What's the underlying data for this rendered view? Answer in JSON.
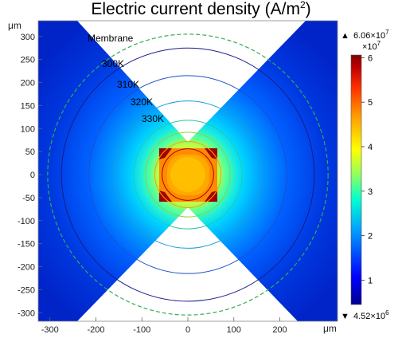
{
  "chart_data": {
    "type": "heatmap",
    "title_main": "Electric current density (A/m",
    "title_sup": "2",
    "title_end": ")",
    "xunit": "μm",
    "yunit": "μm",
    "xlim": [
      -320,
      320
    ],
    "ylim": [
      -310,
      310
    ],
    "xticks": [
      -300,
      -200,
      -100,
      0,
      100,
      200
    ],
    "yticks": [
      300,
      250,
      200,
      150,
      100,
      50,
      0,
      -50,
      -100,
      -150,
      -200,
      -250,
      -300
    ],
    "colorbar": {
      "min": 4520000,
      "max": 60600000,
      "max_label_base": "6.06×10",
      "max_label_exp": "7",
      "min_label_base": "4.52×10",
      "min_label_exp": "6",
      "scale_base": "×10",
      "scale_exp": "7",
      "ticks": [
        1,
        2,
        3,
        4,
        5,
        6
      ],
      "colors": [
        "#00008f",
        "#0000ff",
        "#00a0ff",
        "#00ffd0",
        "#90ff60",
        "#ffff00",
        "#ffa000",
        "#ff3000",
        "#b00000",
        "#800000"
      ]
    },
    "membrane_label": "Membrane",
    "membrane_radius": 305,
    "isotherms": [
      {
        "label": "300K",
        "radius": 275,
        "color": "#1a1a8c"
      },
      {
        "label": "310K",
        "radius": 215,
        "color": "#1c50c8"
      },
      {
        "label": "320K",
        "radius": 160,
        "color": "#1aa0d8"
      },
      {
        "label": "330K",
        "radius": 118,
        "color": "#2ac8a0"
      },
      {
        "label": "",
        "radius": 92,
        "color": "#9acd32"
      },
      {
        "label": "",
        "radius": 72,
        "color": "#ffa000"
      },
      {
        "label": "",
        "radius": 56,
        "color": "#b00000"
      }
    ]
  }
}
